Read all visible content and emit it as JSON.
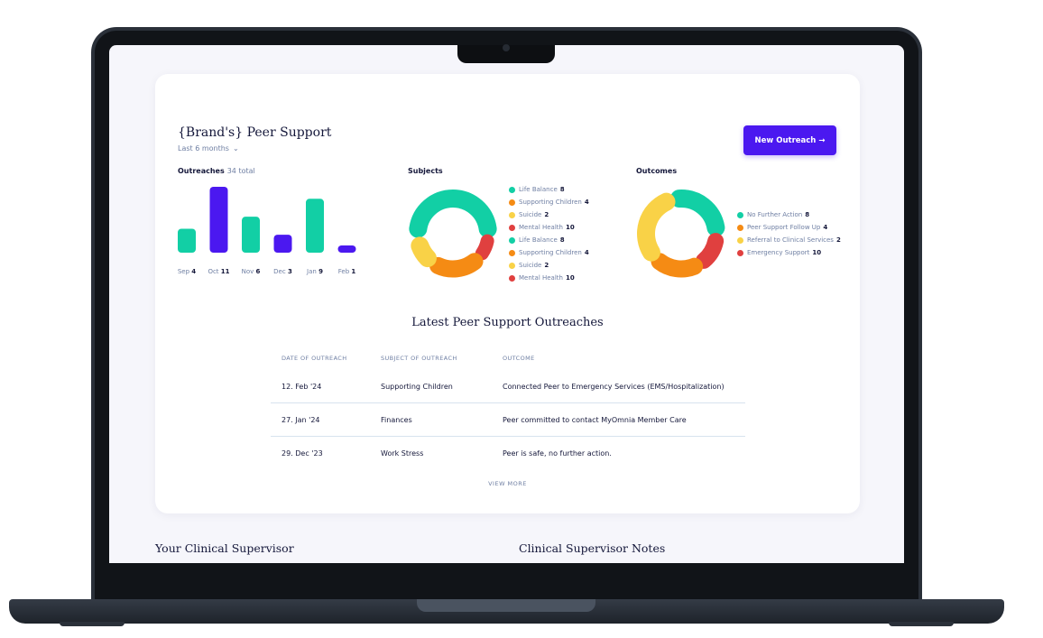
{
  "peer_support": {
    "title": "{Brand's} Peer Support",
    "range_label": "Last 6 months",
    "new_outreach_label": "New Outreach →",
    "outreaches": {
      "label": "Outreaches",
      "total": "34 total"
    },
    "subjects_label": "Subjects",
    "outcomes_label": "Outcomes"
  },
  "chart_data": [
    {
      "type": "bar",
      "title": "Outreaches",
      "categories": [
        "Sep",
        "Oct",
        "Nov",
        "Dec",
        "Jan",
        "Feb"
      ],
      "values": [
        4,
        11,
        6,
        3,
        9,
        1
      ],
      "colors": [
        "#12cfa5",
        "#4b18f0",
        "#12cfa5",
        "#4b18f0",
        "#12cfa5",
        "#4b18f0"
      ],
      "ylim": [
        0,
        11
      ]
    },
    {
      "type": "pie",
      "title": "Subjects",
      "series": [
        {
          "name": "Life Balance",
          "value": 8,
          "color": "#12cfa5"
        },
        {
          "name": "Supporting Children",
          "value": 4,
          "color": "#f58b14"
        },
        {
          "name": "Suicide",
          "value": 2,
          "color": "#f9d247"
        },
        {
          "name": "Mental Health",
          "value": 10,
          "color": "#e0403f"
        },
        {
          "name": "Life Balance",
          "value": 8,
          "color": "#12cfa5"
        },
        {
          "name": "Supporting Children",
          "value": 4,
          "color": "#f58b14"
        },
        {
          "name": "Suicide",
          "value": 2,
          "color": "#f9d247"
        },
        {
          "name": "Mental Health",
          "value": 10,
          "color": "#e0403f"
        }
      ]
    },
    {
      "type": "pie",
      "title": "Outcomes",
      "series": [
        {
          "name": "No Further Action",
          "value": 8,
          "color": "#12cfa5"
        },
        {
          "name": "Peer Support Follow Up",
          "value": 4,
          "color": "#f58b14"
        },
        {
          "name": "Referral to Clinical Services",
          "value": 2,
          "color": "#f9d247"
        },
        {
          "name": "Emergency Support",
          "value": 10,
          "color": "#e0403f"
        }
      ]
    }
  ],
  "outreach_table": {
    "title": "Latest Peer Support Outreaches",
    "columns": [
      "DATE OF OUTREACH",
      "SUBJECT OF OUTREACH",
      "OUTCOME"
    ],
    "rows": [
      [
        "12. Feb '24",
        "Supporting Children",
        "Connected Peer to Emergency Services (EMS/Hospitalization)"
      ],
      [
        "27. Jan '24",
        "Finances",
        "Peer committed to contact MyOmnia Member Care"
      ],
      [
        "29. Dec '23",
        "Work Stress",
        "Peer is safe, no further action."
      ]
    ],
    "view_more_label": "VIEW MORE"
  },
  "bottom": {
    "supervisor_heading": "Your Clinical Supervisor",
    "notes_heading": "Clinical Supervisor Notes"
  }
}
